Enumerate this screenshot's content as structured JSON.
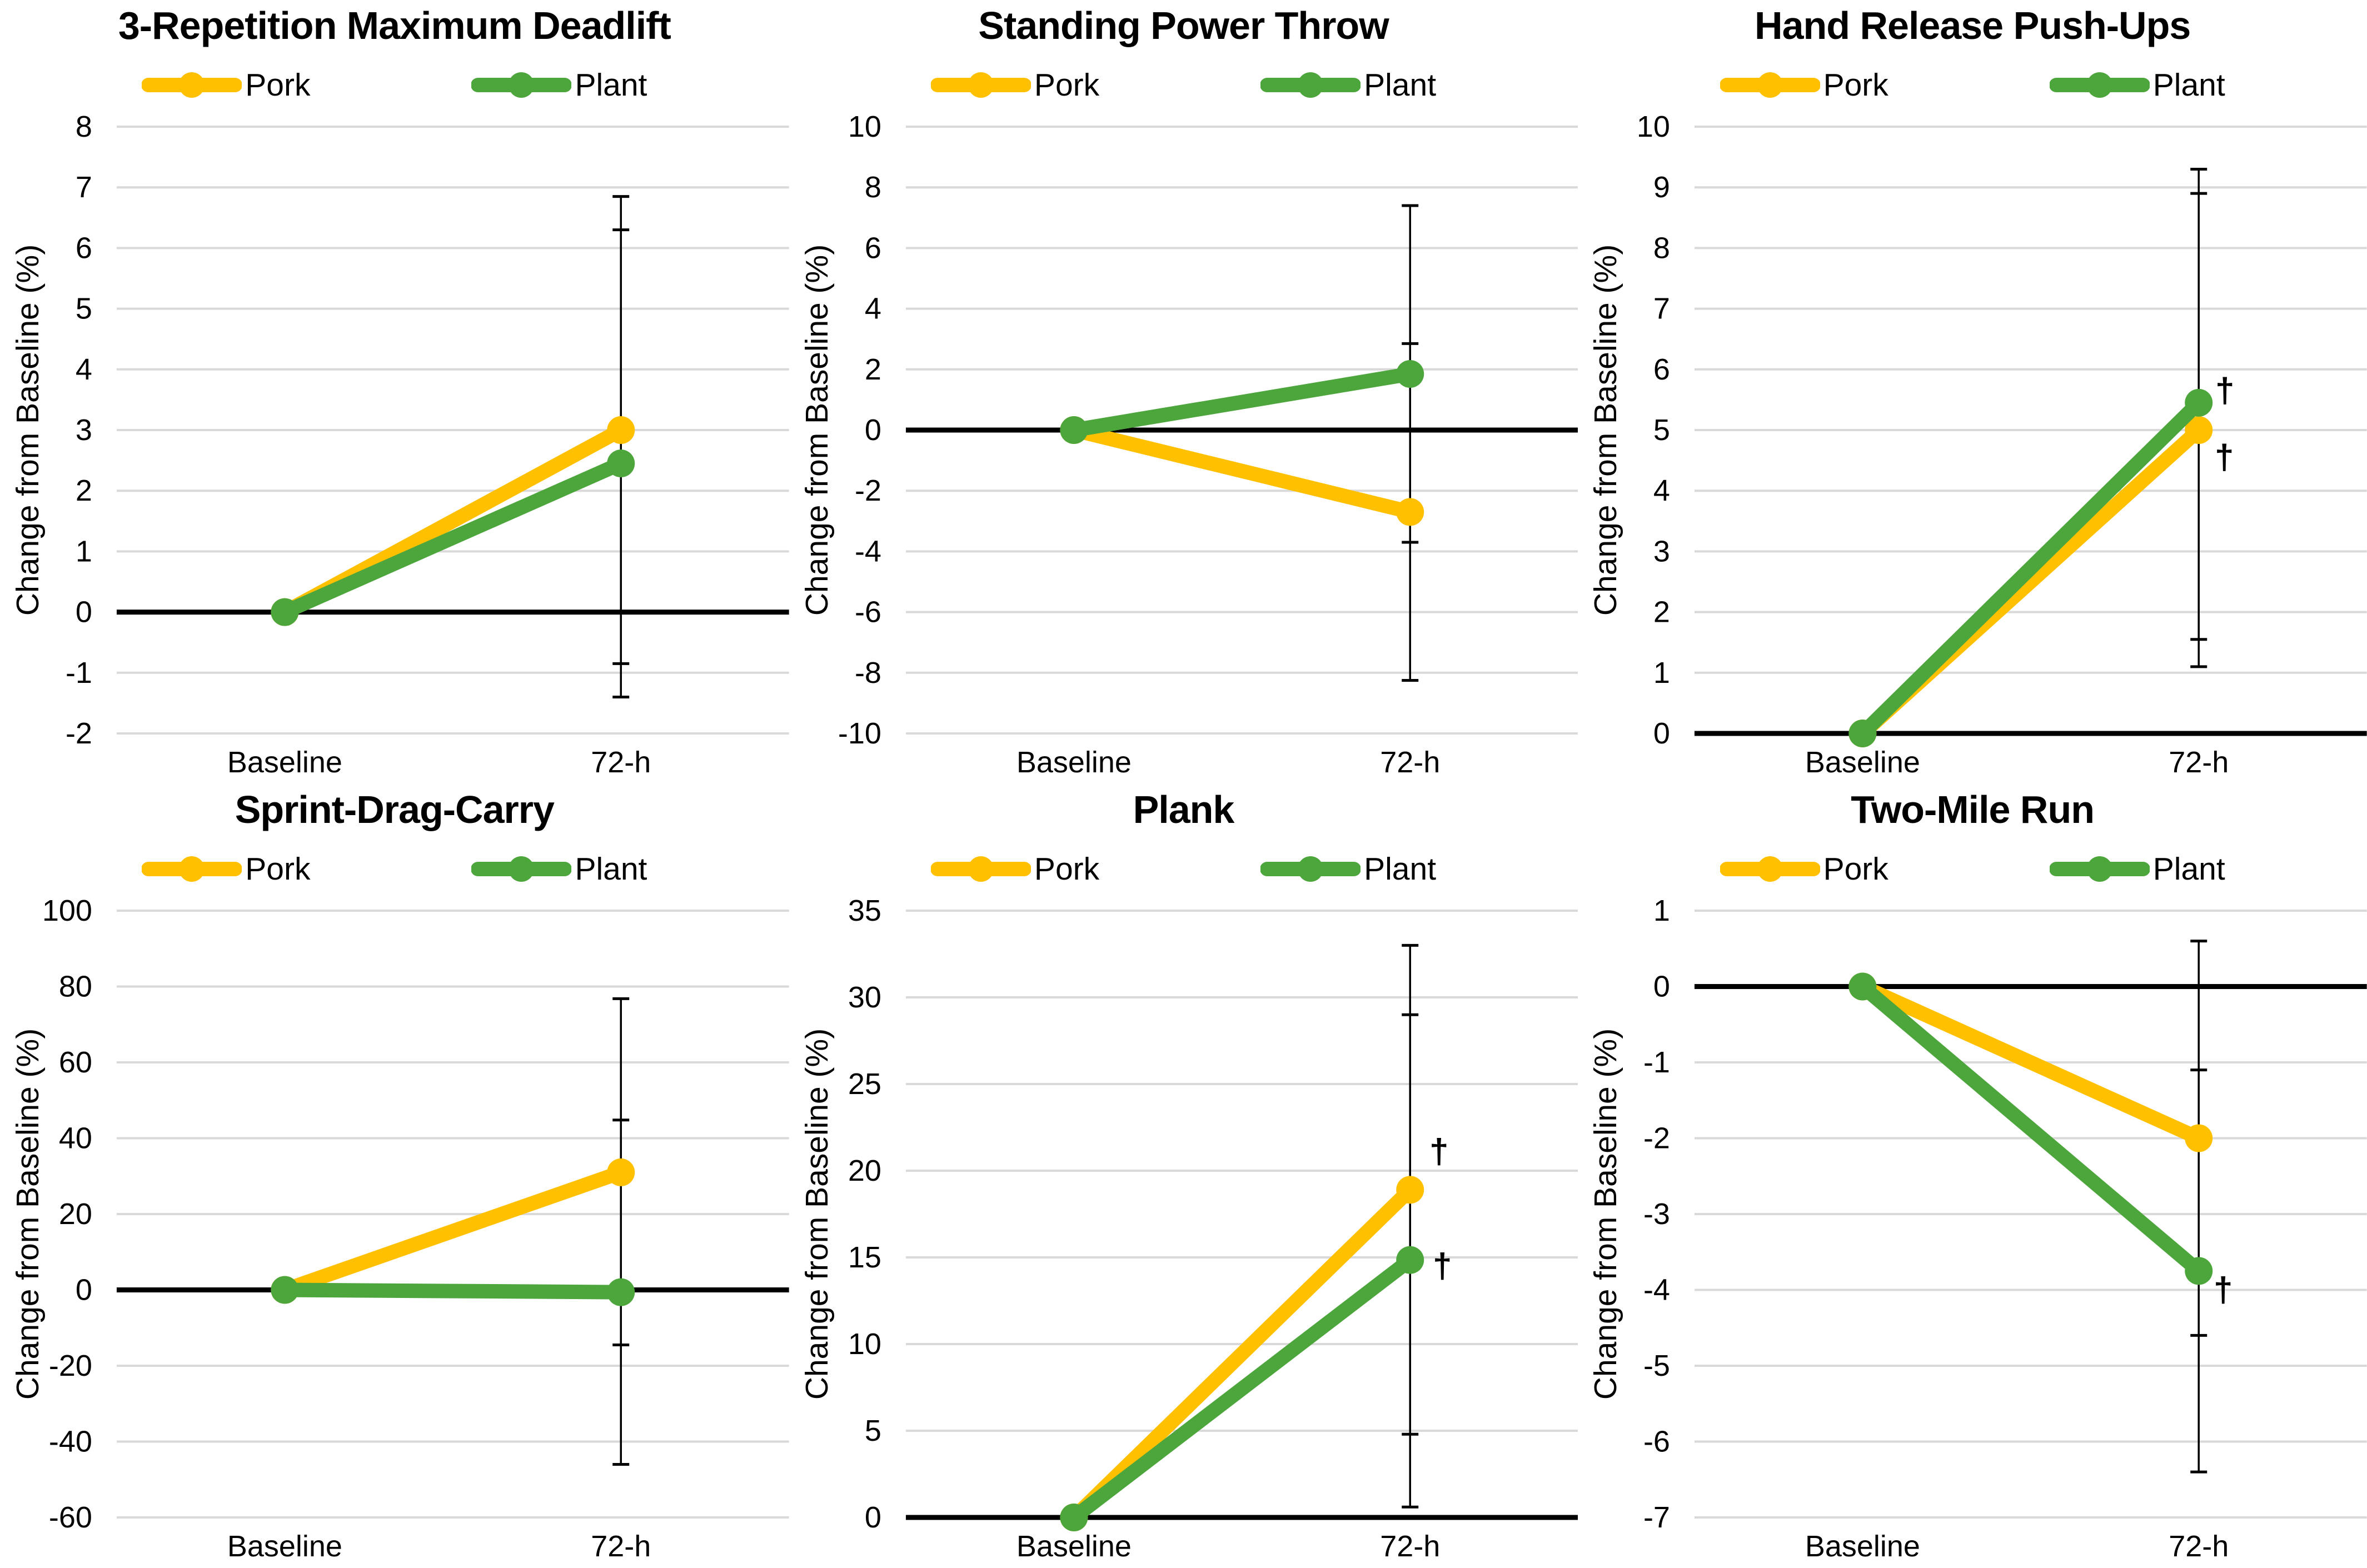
{
  "figure": {
    "background_color": "#FFFFFF",
    "grid_color": "#D9D9D9",
    "zero_line_color": "#000000",
    "error_bar_color": "#000000",
    "text_color": "#000000",
    "pork_color": "#FFC000",
    "plant_color": "#4CA63C",
    "dagger_orange": "#ED7D31"
  },
  "chart_data": [
    {
      "type": "line",
      "title": "3-Repetition Maximum Deadlift",
      "ylabel": "Change from Baseline (%)",
      "xlabel": "",
      "categories": [
        "Baseline",
        "72-h"
      ],
      "ylim": [
        -2,
        8
      ],
      "ytick_step": 1,
      "grid": true,
      "legend_position": "top",
      "series": [
        {
          "name": "Pork",
          "color": "#FFC000",
          "values": [
            0,
            3.0
          ],
          "error_72h": {
            "low": -0.85,
            "high": 6.85
          }
        },
        {
          "name": "Plant",
          "color": "#4CA63C",
          "values": [
            0,
            2.45
          ],
          "error_72h": {
            "low": -1.4,
            "high": 6.3
          }
        }
      ],
      "annotations": []
    },
    {
      "type": "line",
      "title": "Standing Power Throw",
      "ylabel": "Change from Baseline (%)",
      "xlabel": "",
      "categories": [
        "Baseline",
        "72-h"
      ],
      "ylim": [
        -10,
        10
      ],
      "ytick_step": 2,
      "grid": true,
      "legend_position": "top",
      "series": [
        {
          "name": "Pork",
          "color": "#FFC000",
          "values": [
            0,
            -2.7
          ],
          "error_72h": {
            "low": -8.25,
            "high": 2.85
          }
        },
        {
          "name": "Plant",
          "color": "#4CA63C",
          "values": [
            0,
            1.85
          ],
          "error_72h": {
            "low": -3.7,
            "high": 7.4
          }
        }
      ],
      "annotations": []
    },
    {
      "type": "line",
      "title": "Hand Release Push-Ups",
      "ylabel": "Change from Baseline (%)",
      "xlabel": "",
      "categories": [
        "Baseline",
        "72-h"
      ],
      "ylim": [
        0,
        10
      ],
      "ytick_step": 1,
      "grid": true,
      "legend_position": "top",
      "series": [
        {
          "name": "Pork",
          "color": "#FFC000",
          "values": [
            0,
            5.0
          ],
          "error_72h": {
            "low": 1.1,
            "high": 8.9
          }
        },
        {
          "name": "Plant",
          "color": "#4CA63C",
          "values": [
            0,
            5.45
          ],
          "error_72h": {
            "low": 1.55,
            "high": 9.3
          }
        }
      ],
      "annotations": [
        {
          "symbol": "†",
          "color": "#4CA63C",
          "category_index": 1,
          "y": 5.65,
          "dx": 47
        },
        {
          "symbol": "†",
          "color": "#ED7D31",
          "category_index": 1,
          "y": 4.55,
          "dx": 46
        }
      ]
    },
    {
      "type": "line",
      "title": "Sprint-Drag-Carry",
      "ylabel": "Change from Baseline (%)",
      "xlabel": "",
      "categories": [
        "Baseline",
        "72-h"
      ],
      "ylim": [
        -60,
        100
      ],
      "ytick_step": 20,
      "grid": true,
      "legend_position": "top",
      "series": [
        {
          "name": "Pork",
          "color": "#FFC000",
          "values": [
            0,
            31
          ],
          "error_72h": {
            "low": -14.5,
            "high": 76.8
          }
        },
        {
          "name": "Plant",
          "color": "#4CA63C",
          "values": [
            0,
            -0.6
          ],
          "error_72h": {
            "low": -46,
            "high": 44.8
          }
        }
      ],
      "annotations": []
    },
    {
      "type": "line",
      "title": "Plank",
      "ylabel": "Change from Baseline (%)",
      "xlabel": "",
      "categories": [
        "Baseline",
        "72-h"
      ],
      "ylim": [
        0,
        35
      ],
      "ytick_step": 5,
      "grid": true,
      "legend_position": "top",
      "series": [
        {
          "name": "Pork",
          "color": "#FFC000",
          "values": [
            0,
            18.9
          ],
          "error_72h": {
            "low": 4.8,
            "high": 33.0
          }
        },
        {
          "name": "Plant",
          "color": "#4CA63C",
          "values": [
            0,
            14.85
          ],
          "error_72h": {
            "low": 0.6,
            "high": 29.0
          }
        }
      ],
      "annotations": [
        {
          "symbol": "†",
          "color": "#ED7D31",
          "category_index": 1,
          "y": 21.1,
          "dx": 52
        },
        {
          "symbol": "†",
          "color": "#4CA63C",
          "category_index": 1,
          "y": 14.5,
          "dx": 58
        }
      ]
    },
    {
      "type": "line",
      "title": "Two-Mile Run",
      "ylabel": "Change from Baseline (%)",
      "xlabel": "",
      "categories": [
        "Baseline",
        "72-h"
      ],
      "ylim": [
        -7,
        1
      ],
      "ytick_step": 1,
      "grid": true,
      "legend_position": "top",
      "series": [
        {
          "name": "Pork",
          "color": "#FFC000",
          "values": [
            0,
            -2.0
          ],
          "error_72h": {
            "low": -4.6,
            "high": 0.6
          }
        },
        {
          "name": "Plant",
          "color": "#4CA63C",
          "values": [
            0,
            -3.75
          ],
          "error_72h": {
            "low": -6.4,
            "high": -1.1
          }
        }
      ],
      "annotations": [
        {
          "symbol": "†",
          "color": "#4CA63C",
          "category_index": 1,
          "y": -4.0,
          "dx": 44
        }
      ]
    }
  ]
}
